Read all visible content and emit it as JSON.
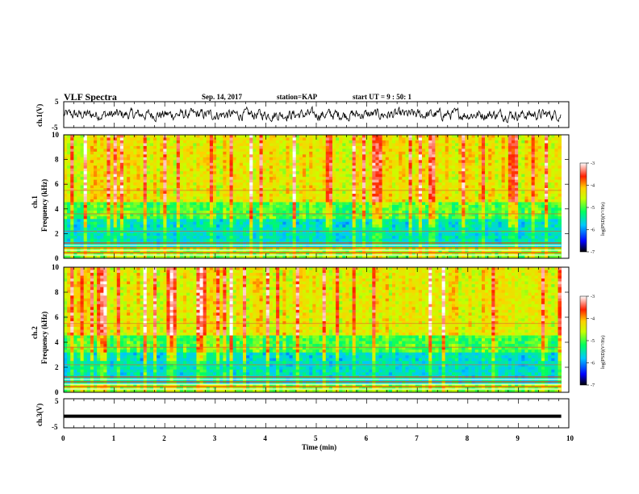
{
  "header": {
    "title": "VLF Spectra",
    "date": "Sep. 14, 2017",
    "station": "station=KAP",
    "start": "start  UT =   9 : 50: 1"
  },
  "chart_data": [
    {
      "type": "line",
      "panel": "ch1-waveform",
      "ylabel": "ch.1(V)",
      "ylim": [
        -5,
        5
      ],
      "yticks": [
        "5",
        "-5"
      ],
      "xlim": [
        0,
        10
      ],
      "note": "noisy waveform ~ amplitude +/-2.5 V spanning 0 to 9.85 min"
    },
    {
      "type": "heatmap",
      "panel": "ch1-spectrogram",
      "ylabel_top": "ch.1",
      "ylabel": "Frequency (kHz)",
      "ylim": [
        0,
        10
      ],
      "yticks": [
        "0",
        "2",
        "4",
        "6",
        "8",
        "10"
      ],
      "xlim": [
        0,
        10
      ],
      "colorbar": {
        "label": "log(PSD)(V²/Hz)",
        "range": [
          -7,
          -3
        ],
        "ticks": [
          "-3",
          "-4",
          "-5",
          "-6",
          "-7"
        ]
      }
    },
    {
      "type": "heatmap",
      "panel": "ch2-spectrogram",
      "ylabel_top": "ch.2",
      "ylabel": "Frequency (kHz)",
      "ylim": [
        0,
        10
      ],
      "yticks": [
        "0",
        "2",
        "4",
        "6",
        "8",
        "10"
      ],
      "xlim": [
        0,
        10
      ],
      "colorbar": {
        "label": "log(PSD)(V²/Hz)",
        "range": [
          -7,
          -3
        ],
        "ticks": [
          "-3",
          "-4",
          "-5",
          "-6",
          "-7"
        ]
      }
    },
    {
      "type": "line",
      "panel": "ch3-waveform",
      "ylabel": "ch.3(V)",
      "ylim": [
        -5,
        5
      ],
      "yticks": [
        "5",
        "-5"
      ],
      "x": [
        0,
        9.85
      ],
      "values": [
        -1,
        -1
      ],
      "xlim": [
        0,
        10
      ],
      "xlabel": "Time (min)",
      "xticks": [
        "0",
        "1",
        "2",
        "3",
        "4",
        "5",
        "6",
        "7",
        "8",
        "9",
        "10"
      ]
    }
  ]
}
